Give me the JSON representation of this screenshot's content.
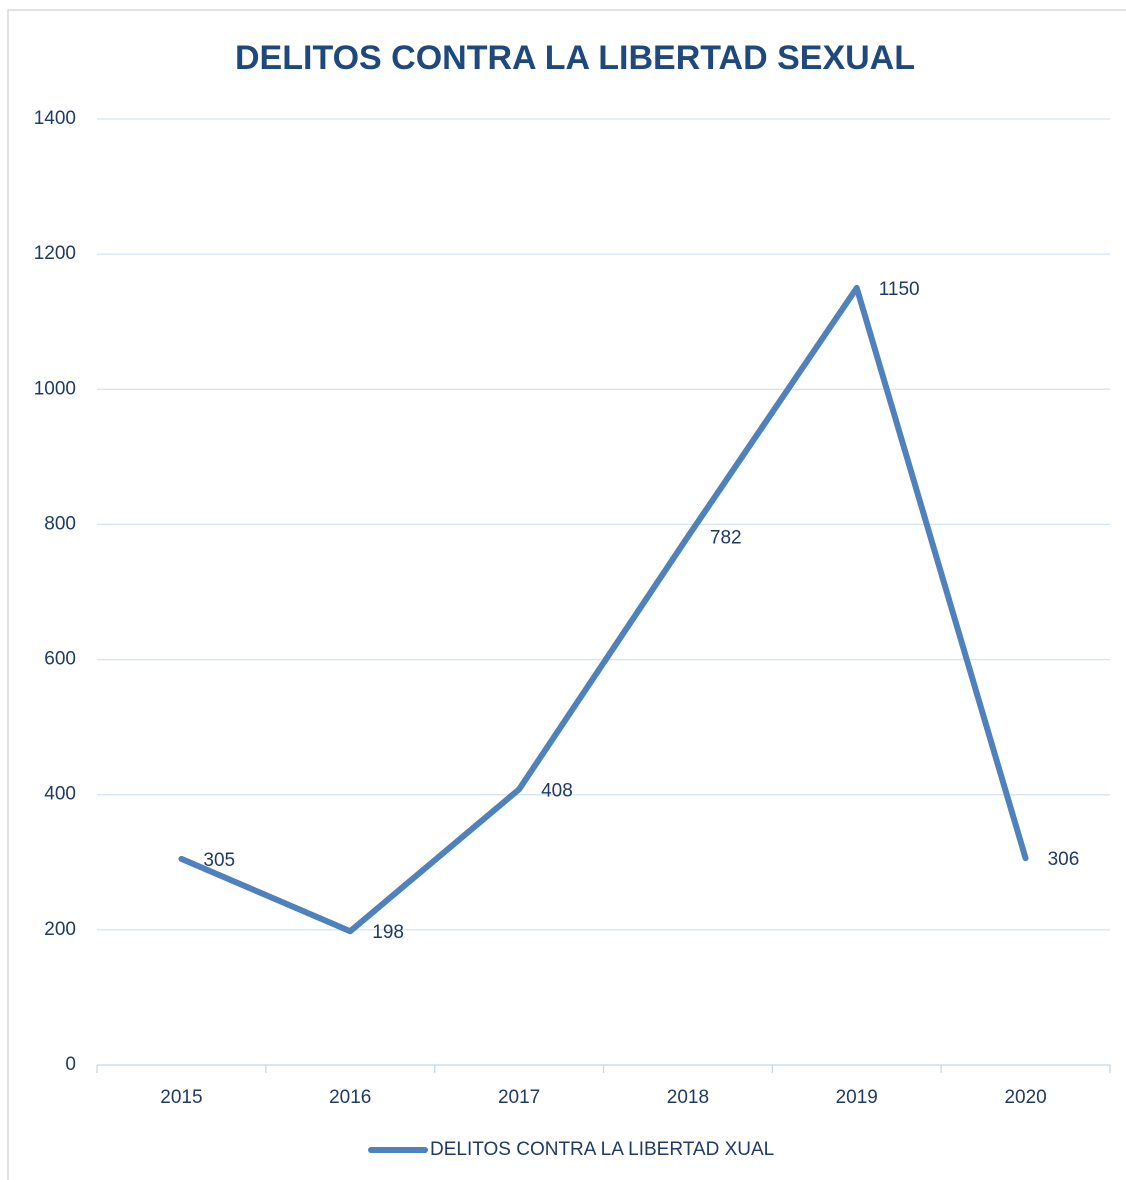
{
  "chart_data": {
    "type": "line",
    "title": "DELITOS CONTRA LA LIBERTAD SEXUAL",
    "categories": [
      "2015",
      "2016",
      "2017",
      "2018",
      "2019",
      "2020"
    ],
    "series": [
      {
        "name": "DELITOS CONTRA LA LIBERTAD XUAL",
        "color": "#4f81bd",
        "values": [
          305,
          198,
          408,
          782,
          1150,
          306
        ]
      }
    ],
    "ylim": [
      0,
      1400
    ],
    "yticks": [
      0,
      200,
      400,
      600,
      800,
      1000,
      1200,
      1400
    ],
    "grid": true,
    "legend": "bottom",
    "data_labels": true
  }
}
